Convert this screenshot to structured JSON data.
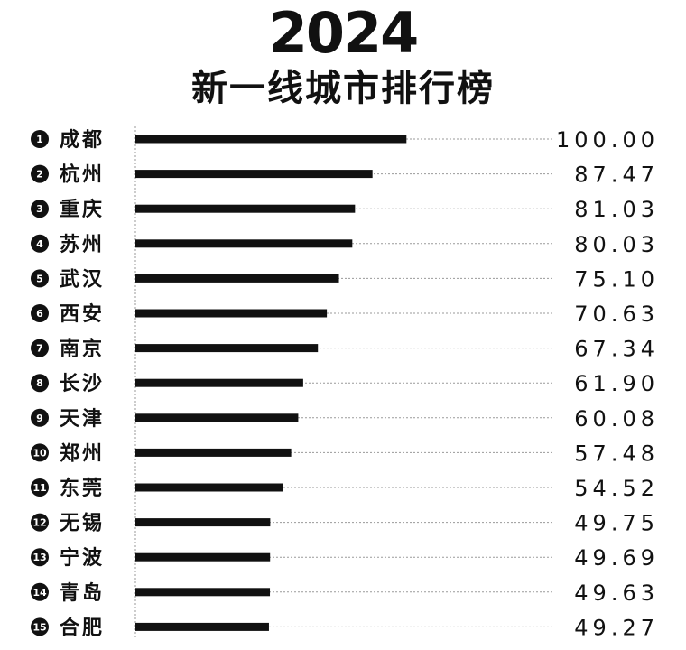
{
  "chart_data": {
    "type": "bar",
    "orientation": "horizontal",
    "title": "2024",
    "subtitle": "新一线城市排行榜",
    "categories": [
      "成都",
      "杭州",
      "重庆",
      "苏州",
      "武汉",
      "西安",
      "南京",
      "长沙",
      "天津",
      "郑州",
      "东莞",
      "无锡",
      "宁波",
      "青岛",
      "合肥"
    ],
    "ranks": [
      "1",
      "2",
      "3",
      "4",
      "5",
      "6",
      "7",
      "8",
      "9",
      "10",
      "11",
      "12",
      "13",
      "14",
      "15"
    ],
    "values": [
      100.0,
      87.47,
      81.03,
      80.03,
      75.1,
      70.63,
      67.34,
      61.9,
      60.08,
      57.48,
      54.52,
      49.75,
      49.69,
      49.63,
      49.27
    ],
    "value_labels": [
      "100.00",
      "87.47",
      "81.03",
      "80.03",
      "75.10",
      "70.63",
      "67.34",
      "61.90",
      "60.08",
      "57.48",
      "54.52",
      "49.75",
      "49.69",
      "49.63",
      "49.27"
    ],
    "xlim": [
      0,
      200
    ],
    "grid": false,
    "colors": {
      "bar": "#111111",
      "leader": "#9a9a9a",
      "background": "#ffffff",
      "axis": "#9a9a9a"
    }
  }
}
